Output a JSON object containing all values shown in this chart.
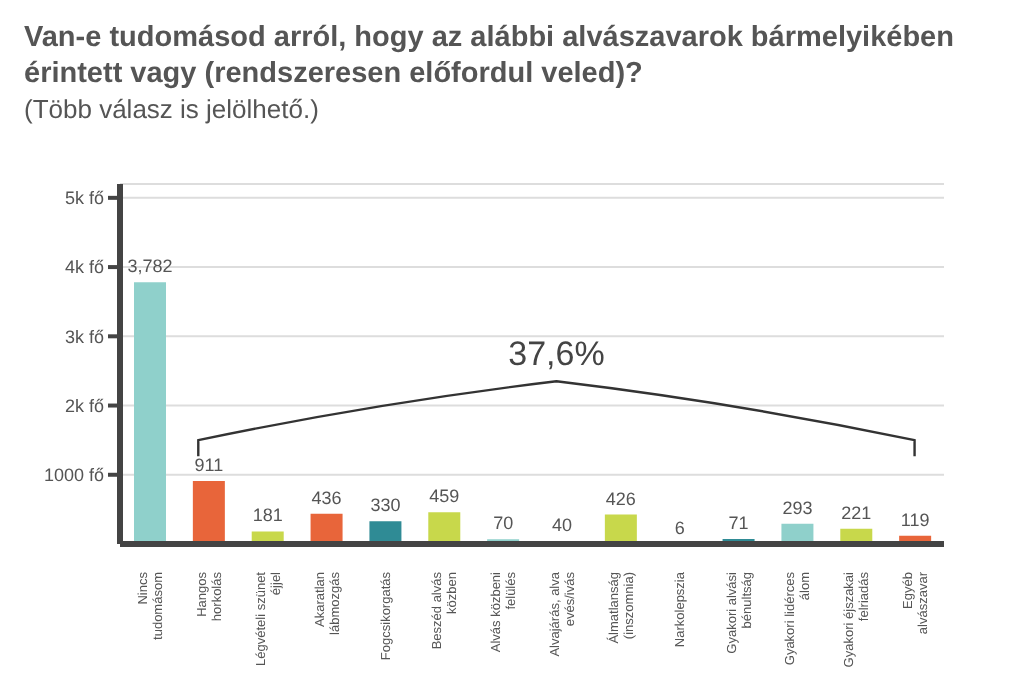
{
  "chart_data": {
    "type": "bar",
    "title": "Van-e tudomásod arról, hogy az alábbi alvászavarok bármelyikében érintett vagy (rendszeresen előfordul veled)?",
    "subtitle": "(Több válasz is jelölhető.)",
    "categories": [
      "Nincs tudomásom",
      "Hangos horkolás",
      "Légvételi szünet éjjel",
      "Akaratlan lábmozgás",
      "Fogcsikorgatás",
      "Beszéd alvás közben",
      "Alvás közbeni felülés",
      "Alvajárás, alva evés/ivás",
      "Álmatlanság (inszomnia)",
      "Narkolepszia",
      "Gyakori alvási bénultság",
      "Gyakori lidérces álom",
      "Gyakori éjszakai felriadás",
      "Egyéb alvászavar"
    ],
    "values": [
      3782,
      911,
      181,
      436,
      330,
      459,
      70,
      40,
      426,
      6,
      71,
      293,
      221,
      119
    ],
    "colors": [
      "#8fd0cb",
      "#e8653a",
      "#c8d84b",
      "#e8653a",
      "#2f8b95",
      "#c8d84b",
      "#8fd0cb",
      "#e8653a",
      "#c8d84b",
      "#e8653a",
      "#2f8b95",
      "#8fd0cb",
      "#c8d84b",
      "#e8653a"
    ],
    "value_labels": [
      "3,782",
      "911",
      "181",
      "436",
      "330",
      "459",
      "70",
      "40",
      "426",
      "6",
      "71",
      "293",
      "221",
      "119"
    ],
    "annotations": [
      "37,6%"
    ],
    "ylim": [
      0,
      5200
    ],
    "yticks": [
      {
        "value": 1000,
        "label": "1000 fő"
      },
      {
        "value": 2000,
        "label": "2k fő"
      },
      {
        "value": 3000,
        "label": "3k fő"
      },
      {
        "value": 4000,
        "label": "4k fő"
      },
      {
        "value": 5000,
        "label": "5k fő"
      }
    ],
    "grid": "y"
  }
}
